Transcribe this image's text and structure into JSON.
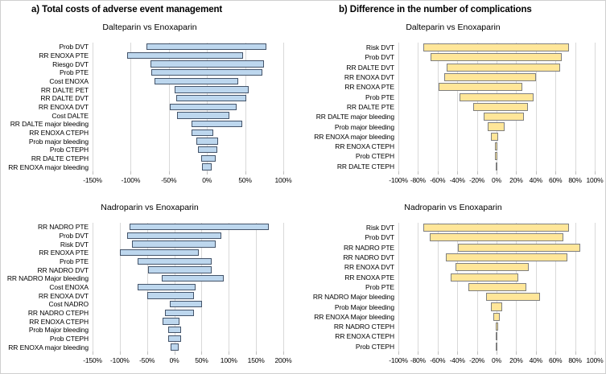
{
  "figure": {
    "background": "#ffffff",
    "grid": "vertical-light-gray",
    "gridline_color": "#d9d9d9",
    "legend": "none",
    "value_format": "percent"
  },
  "sections": [
    {
      "id": "a",
      "title": "a) Total costs of adverse event management"
    },
    {
      "id": "b",
      "title": "b) Difference in the number of complications"
    }
  ],
  "colors": {
    "blue_fill": "#bdd7ee",
    "blue_border": "#44546a",
    "yellow_fill": "#ffe699",
    "yellow_border": "#7f7f7f"
  },
  "chart_data": [
    {
      "type": "bar",
      "subtype": "tornado-range",
      "section": "a) Total costs of adverse event management",
      "title": "Dalteparin vs Enoxaparin",
      "bar_fill": "#bdd7ee",
      "bar_border": "#44546a",
      "axis": {
        "min": -150,
        "max": 100,
        "ticks": [
          -150,
          -100,
          -50,
          0,
          50,
          100
        ],
        "unit": "%"
      },
      "bars": [
        {
          "label": "Prob DVT",
          "low": -79,
          "high": 78
        },
        {
          "label": "RR ENOXA PTE",
          "low": -105,
          "high": 47
        },
        {
          "label": "Riesgo DVT",
          "low": -74,
          "high": 75
        },
        {
          "label": "Prob PTE",
          "low": -73,
          "high": 73
        },
        {
          "label": "Cost ENOXA",
          "low": -69,
          "high": 41
        },
        {
          "label": "RR DALTE PET",
          "low": -42,
          "high": 55
        },
        {
          "label": "RR DALTE DVT",
          "low": -40,
          "high": 51
        },
        {
          "label": "RR ENOXA DVT",
          "low": -49,
          "high": 39
        },
        {
          "label": "Cost DALTE",
          "low": -39,
          "high": 29
        },
        {
          "label": "RR DALTE major bleeding",
          "low": -20,
          "high": 46
        },
        {
          "label": "RR ENOXA CTEPH",
          "low": -20,
          "high": 8
        },
        {
          "label": "Prob major bleeding",
          "low": -14,
          "high": 15
        },
        {
          "label": "Prob CTEPH",
          "low": -12,
          "high": 14
        },
        {
          "label": "RR DALTE CTEPH",
          "low": -8,
          "high": 11
        },
        {
          "label": "RR ENOXA major bleeding",
          "low": -7,
          "high": 6
        }
      ]
    },
    {
      "type": "bar",
      "subtype": "tornado-range",
      "section": "b) Difference in the number of complications",
      "title": "Dalteparin vs Enoxaparin",
      "bar_fill": "#ffe699",
      "bar_border": "#7f7f7f",
      "axis": {
        "min": -100,
        "max": 100,
        "ticks": [
          -100,
          -80,
          -60,
          -40,
          -20,
          0,
          20,
          40,
          60,
          80,
          100
        ],
        "unit": "%"
      },
      "bars": [
        {
          "label": "Risk DVT",
          "low": -75,
          "high": 74
        },
        {
          "label": "Prob DVT",
          "low": -67,
          "high": 66
        },
        {
          "label": "RR DALTE DVT",
          "low": -51,
          "high": 65
        },
        {
          "label": "RR ENOXA DVT",
          "low": -53,
          "high": 40
        },
        {
          "label": "RR ENOXA PTE",
          "low": -59,
          "high": 26
        },
        {
          "label": "Prob PTE",
          "low": -38,
          "high": 38
        },
        {
          "label": "RR DALTE PTE",
          "low": -24,
          "high": 32
        },
        {
          "label": "RR DALTE major bleeding",
          "low": -13,
          "high": 28
        },
        {
          "label": "Prob major bleeding",
          "low": -9,
          "high": 8
        },
        {
          "label": "RR ENOXA major bleeding",
          "low": -6,
          "high": 2
        },
        {
          "label": "RR ENOXA CTEPH",
          "low": -2,
          "high": 0.5
        },
        {
          "label": "Prob CTEPH",
          "low": -1.5,
          "high": 1
        },
        {
          "label": "RR DALTE CTEPH",
          "low": -1,
          "high": 0.5
        }
      ]
    },
    {
      "type": "bar",
      "subtype": "tornado-range",
      "section": "a) Total costs of adverse event management",
      "title": "Nadroparin vs Enoxaparin",
      "bar_fill": "#bdd7ee",
      "bar_border": "#44546a",
      "axis": {
        "min": -150,
        "max": 200,
        "ticks": [
          -150,
          -100,
          -50,
          0,
          50,
          100,
          150,
          200
        ],
        "unit": "%"
      },
      "bars": [
        {
          "label": "RR NADRO PTE",
          "low": -82,
          "high": 174
        },
        {
          "label": "Prob DVT",
          "low": -87,
          "high": 87
        },
        {
          "label": "Risk DVT",
          "low": -77,
          "high": 76
        },
        {
          "label": "RR ENOXA PTE",
          "low": -100,
          "high": 45
        },
        {
          "label": "Prob PTE",
          "low": -68,
          "high": 68
        },
        {
          "label": "RR NADRO DVT",
          "low": -48,
          "high": 68
        },
        {
          "label": "RR NADRO Major bleeding",
          "low": -23,
          "high": 90
        },
        {
          "label": "Cost ENOXA",
          "low": -67,
          "high": 39
        },
        {
          "label": "RR ENOXA DVT",
          "low": -49,
          "high": 36
        },
        {
          "label": "Cost NADRO",
          "low": -8,
          "high": 51
        },
        {
          "label": "RR NADRO CTEPH",
          "low": -17,
          "high": 36
        },
        {
          "label": "RR ENOXA CTEPH",
          "low": -21,
          "high": 10
        },
        {
          "label": "Prob Major bleeding",
          "low": -11,
          "high": 12
        },
        {
          "label": "Prob CTEPH",
          "low": -11,
          "high": 12
        },
        {
          "label": "RR ENOXA major bleeding",
          "low": -7,
          "high": 8
        }
      ]
    },
    {
      "type": "bar",
      "subtype": "tornado-range",
      "section": "b) Difference in the number of complications",
      "title": "Nadroparin vs Enoxaparin",
      "bar_fill": "#ffe699",
      "bar_border": "#7f7f7f",
      "axis": {
        "min": -100,
        "max": 100,
        "ticks": [
          -100,
          -80,
          -60,
          -40,
          -20,
          0,
          20,
          40,
          60,
          80,
          100
        ],
        "unit": "%"
      },
      "bars": [
        {
          "label": "Risk DVT",
          "low": -75,
          "high": 74
        },
        {
          "label": "Prob DVT",
          "low": -68,
          "high": 68
        },
        {
          "label": "RR NADRO PTE",
          "low": -39,
          "high": 85
        },
        {
          "label": "RR NADRO DVT",
          "low": -52,
          "high": 72
        },
        {
          "label": "RR ENOXA DVT",
          "low": -42,
          "high": 33
        },
        {
          "label": "RR ENOXA PTE",
          "low": -47,
          "high": 22
        },
        {
          "label": "Prob PTE",
          "low": -29,
          "high": 30
        },
        {
          "label": "RR NADRO Major bleeding",
          "low": -11,
          "high": 44
        },
        {
          "label": "Prob Major bleeding",
          "low": -6,
          "high": 6
        },
        {
          "label": "RR ENOXA Major bleeding",
          "low": -3,
          "high": 3
        },
        {
          "label": "RR NADRO CTEPH",
          "low": -1,
          "high": 2
        },
        {
          "label": "RR ENOXA CTEPH",
          "low": -0.5,
          "high": 0.5
        },
        {
          "label": "Prob CTEPH",
          "low": -0.5,
          "high": 0.5
        }
      ]
    }
  ]
}
